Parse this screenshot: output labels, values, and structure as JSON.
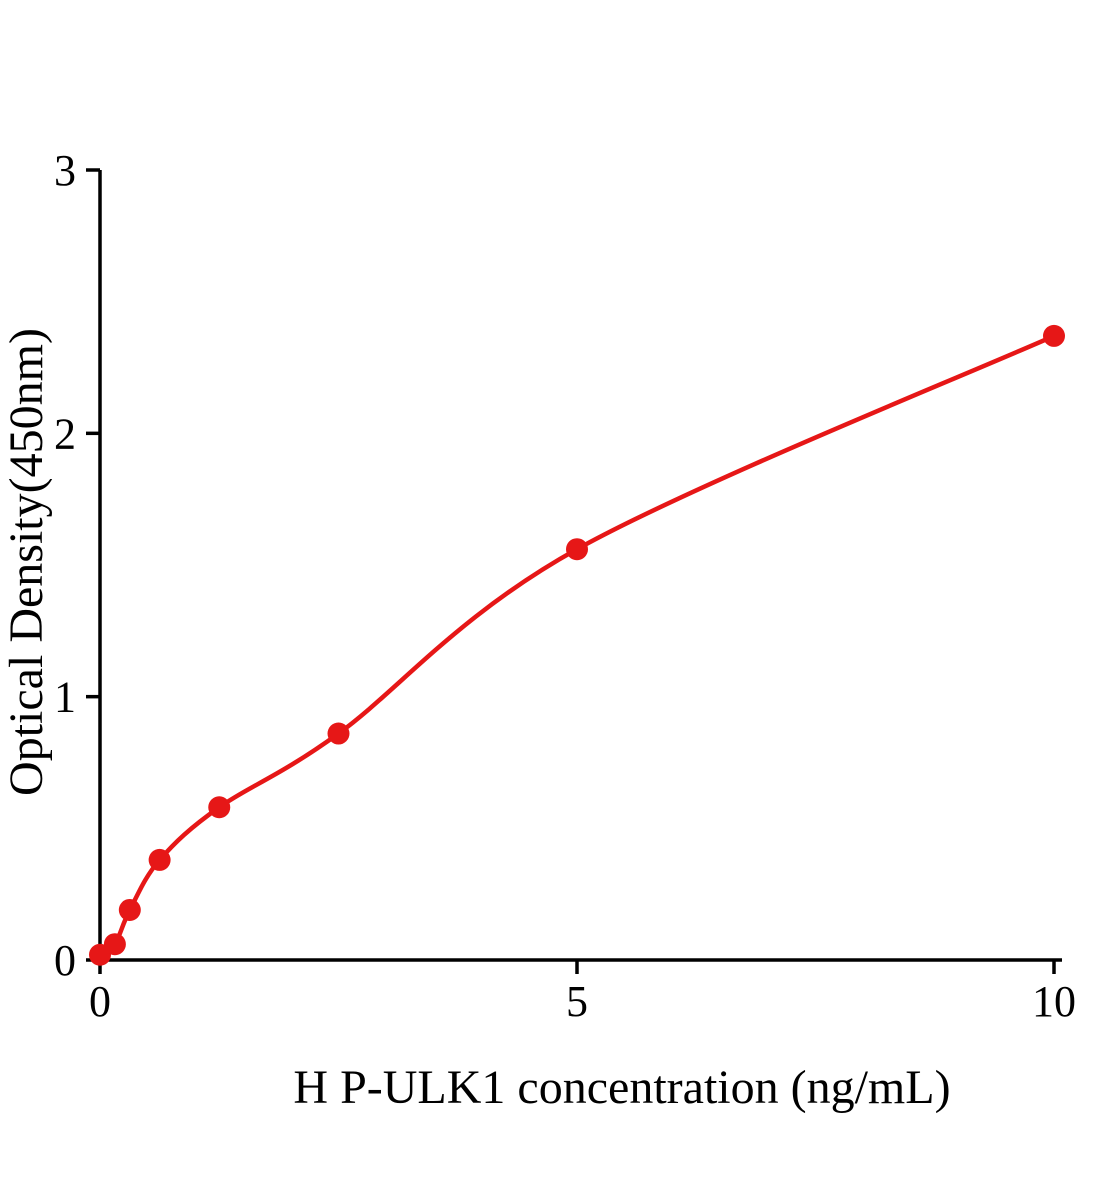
{
  "chart_data": {
    "type": "scatter",
    "title": "",
    "xlabel": "H P-ULK1 concentration (ng/mL)",
    "ylabel": "Optical Density(450nm)",
    "x": [
      0,
      0.156,
      0.3125,
      0.625,
      1.25,
      2.5,
      5,
      10
    ],
    "y": [
      0.02,
      0.06,
      0.19,
      0.38,
      0.58,
      0.86,
      1.56,
      2.37
    ],
    "xlim": [
      0,
      10
    ],
    "ylim": [
      0,
      3
    ],
    "xticks": [
      "0",
      "5",
      "10"
    ],
    "yticks": [
      "0",
      "1",
      "2",
      "3"
    ],
    "grid": false,
    "legend": false,
    "marker": "circle",
    "curve": "smooth-fit-through-points",
    "colors": {
      "series": "#e61717",
      "axis": "#000000",
      "background": "#ffffff"
    }
  }
}
